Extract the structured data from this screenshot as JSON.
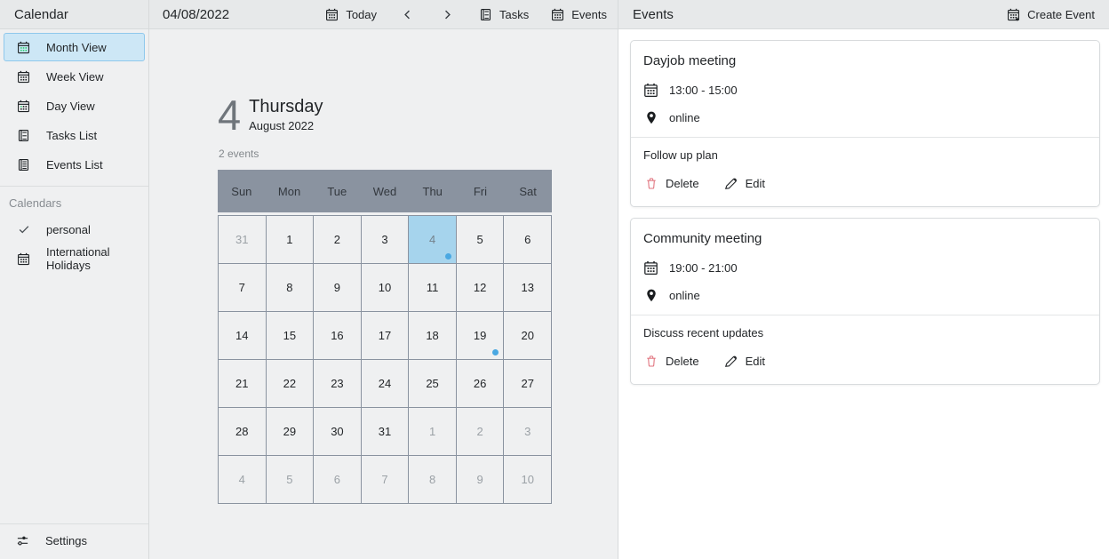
{
  "colors": {
    "header_bg": "#e7e9ea",
    "content_bg": "#eff0f1",
    "panel_bg": "#ffffff",
    "selected_item_bg": "#cde7f6",
    "selected_item_border": "#8fc8ec",
    "grid_header_bg": "#8a93a0",
    "selected_day_bg": "#a6d4ed",
    "event_dot": "#4aa8e2",
    "delete_red": "#e0717c"
  },
  "header": {
    "app_title": "Calendar",
    "current_date": "04/08/2022",
    "today_label": "Today",
    "tasks_label": "Tasks",
    "events_label": "Events",
    "panel_title": "Events",
    "create_event_label": "Create Event"
  },
  "sidebar": {
    "views": [
      {
        "label": "Month View",
        "icon": "month-view-icon",
        "selected": true
      },
      {
        "label": "Week View",
        "icon": "week-view-icon",
        "selected": false
      },
      {
        "label": "Day View",
        "icon": "day-view-icon",
        "selected": false
      },
      {
        "label": "Tasks List",
        "icon": "tasks-list-icon",
        "selected": false
      },
      {
        "label": "Events List",
        "icon": "events-list-icon",
        "selected": false
      }
    ],
    "calendars_header": "Calendars",
    "calendars": [
      {
        "label": "personal",
        "icon": "check-icon"
      },
      {
        "label": "International Holidays",
        "icon": "calendar-icon"
      }
    ],
    "settings_label": "Settings"
  },
  "main": {
    "selected_day": "4",
    "selected_weekday": "Thursday",
    "month_year": "August 2022",
    "events_count": "2 events",
    "weekdays": [
      "Sun",
      "Mon",
      "Tue",
      "Wed",
      "Thu",
      "Fri",
      "Sat"
    ],
    "grid": [
      {
        "day": "31",
        "muted": true
      },
      {
        "day": "1"
      },
      {
        "day": "2"
      },
      {
        "day": "3"
      },
      {
        "day": "4",
        "selected": true,
        "dot": true
      },
      {
        "day": "5"
      },
      {
        "day": "6"
      },
      {
        "day": "7"
      },
      {
        "day": "8"
      },
      {
        "day": "9"
      },
      {
        "day": "10"
      },
      {
        "day": "11"
      },
      {
        "day": "12"
      },
      {
        "day": "13"
      },
      {
        "day": "14"
      },
      {
        "day": "15"
      },
      {
        "day": "16"
      },
      {
        "day": "17"
      },
      {
        "day": "18"
      },
      {
        "day": "19",
        "dot": true
      },
      {
        "day": "20"
      },
      {
        "day": "21"
      },
      {
        "day": "22"
      },
      {
        "day": "23"
      },
      {
        "day": "24"
      },
      {
        "day": "25"
      },
      {
        "day": "26"
      },
      {
        "day": "27"
      },
      {
        "day": "28"
      },
      {
        "day": "29"
      },
      {
        "day": "30"
      },
      {
        "day": "31"
      },
      {
        "day": "1",
        "muted": true
      },
      {
        "day": "2",
        "muted": true
      },
      {
        "day": "3",
        "muted": true
      },
      {
        "day": "4",
        "muted": true
      },
      {
        "day": "5",
        "muted": true
      },
      {
        "day": "6",
        "muted": true
      },
      {
        "day": "7",
        "muted": true
      },
      {
        "day": "8",
        "muted": true
      },
      {
        "day": "9",
        "muted": true
      },
      {
        "day": "10",
        "muted": true
      }
    ]
  },
  "events_panel": {
    "delete_label": "Delete",
    "edit_label": "Edit",
    "events": [
      {
        "title": "Dayjob meeting",
        "time": "13:00 - 15:00",
        "location": "online",
        "description": "Follow up plan"
      },
      {
        "title": "Community meeting",
        "time": "19:00 - 21:00",
        "location": "online",
        "description": "Discuss recent updates"
      }
    ]
  }
}
